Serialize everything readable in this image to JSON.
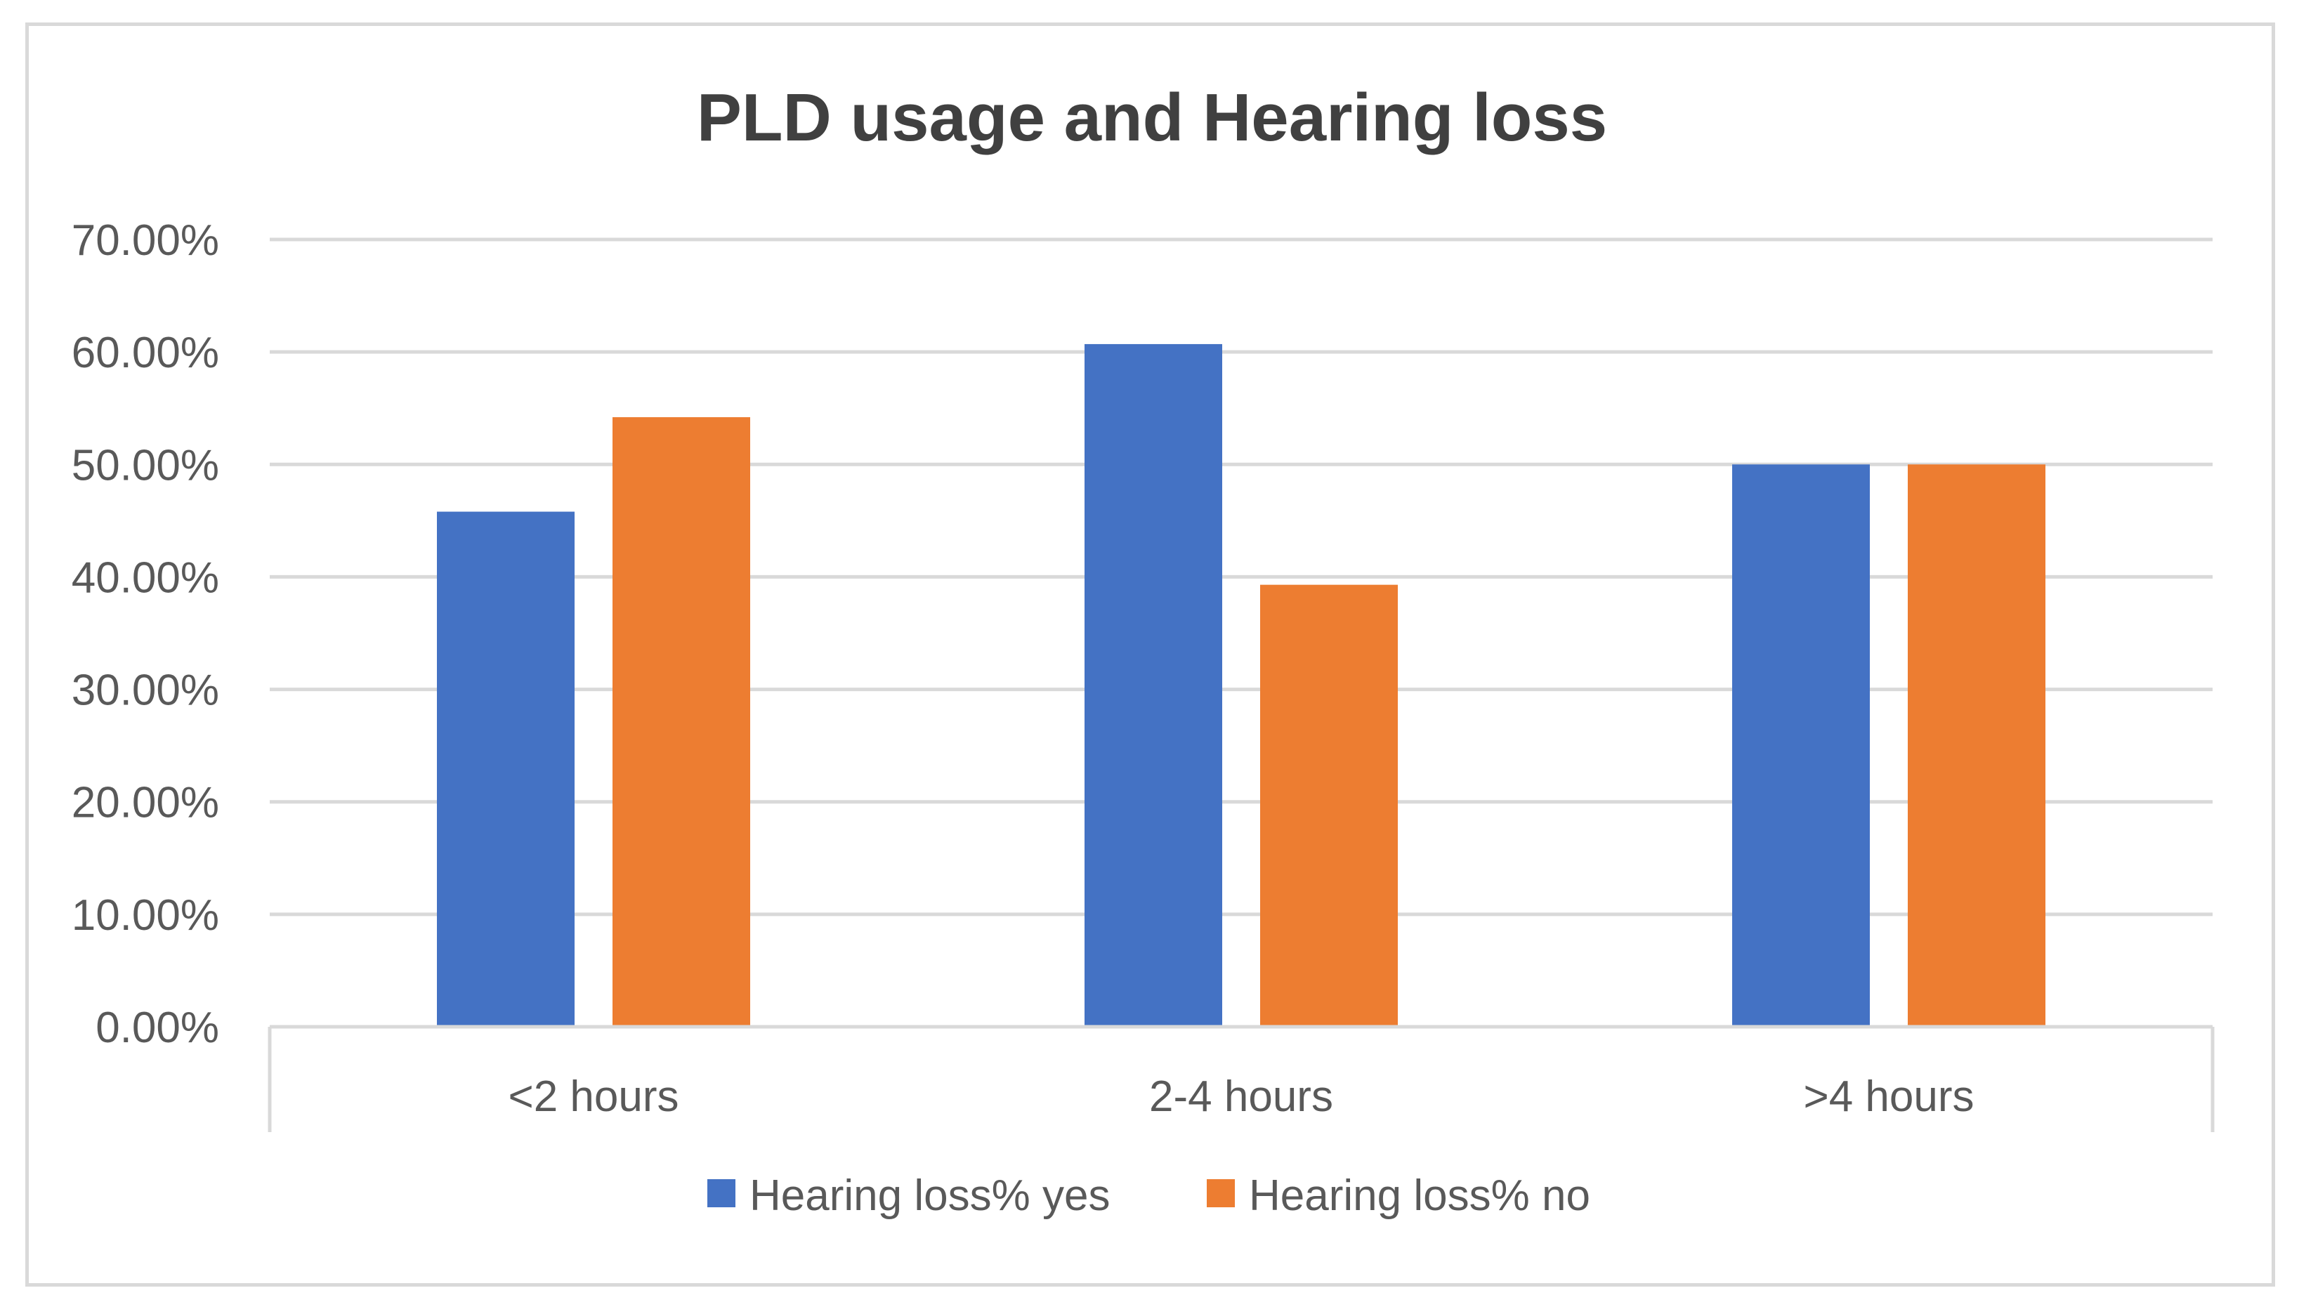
{
  "chart_data": {
    "type": "bar",
    "title": "PLD usage and Hearing loss",
    "xlabel": "",
    "ylabel": "",
    "categories": [
      "<2 hours",
      "2-4 hours",
      ">4 hours"
    ],
    "series": [
      {
        "name": "Hearing loss% yes",
        "color": "#4472c4",
        "values": [
          0.458,
          0.607,
          0.5
        ]
      },
      {
        "name": "Hearing loss% no",
        "color": "#ed7d31",
        "values": [
          0.542,
          0.393,
          0.5
        ]
      }
    ],
    "ylim": [
      0,
      0.7
    ],
    "yticks": [
      0,
      0.1,
      0.2,
      0.3,
      0.4,
      0.5,
      0.6,
      0.7
    ],
    "ytick_labels": [
      "0.00%",
      "10.00%",
      "20.00%",
      "30.00%",
      "40.00%",
      "50.00%",
      "60.00%",
      "70.00%"
    ],
    "grid": true,
    "legend_position": "bottom"
  }
}
